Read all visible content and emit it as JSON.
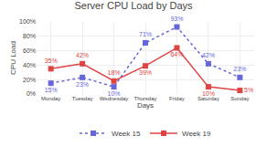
{
  "chart_data": {
    "type": "line",
    "title": "Server CPU Load by Days",
    "x_label": "Days",
    "y_label": "CPU Load",
    "categories": [
      "Monday",
      "Tuesday",
      "Wednesday",
      "Thursday",
      "Friday",
      "Saturday",
      "Sunday"
    ],
    "series": [
      {
        "name": "Week 15",
        "color": "#6666dd",
        "marker": "square",
        "line_style": "dotted",
        "values": [
          15,
          23,
          10,
          71,
          93,
          42,
          23
        ],
        "value_labels": [
          "15%",
          "23%",
          "10%",
          "71%",
          "93%",
          "42%",
          "23%"
        ]
      },
      {
        "name": "Week 19",
        "color": "#dd4444",
        "marker": "square",
        "line_style": "solid",
        "values": [
          35,
          42,
          18,
          39,
          64,
          10,
          5
        ],
        "value_labels": [
          "35%",
          "42%",
          "18%",
          "39%",
          "64%",
          "10%",
          "5%"
        ]
      }
    ],
    "ylim": [
      0,
      100
    ],
    "yticks": [
      {
        "value": 0,
        "label": "0%"
      },
      {
        "value": 20,
        "label": "20%"
      },
      {
        "value": 40,
        "label": "40%"
      },
      {
        "value": 60,
        "label": "60%"
      },
      {
        "value": 80,
        "label": "80%"
      },
      {
        "value": 100,
        "label": "100%"
      }
    ],
    "grid": true,
    "legend": "bottom",
    "data_labels": true
  }
}
